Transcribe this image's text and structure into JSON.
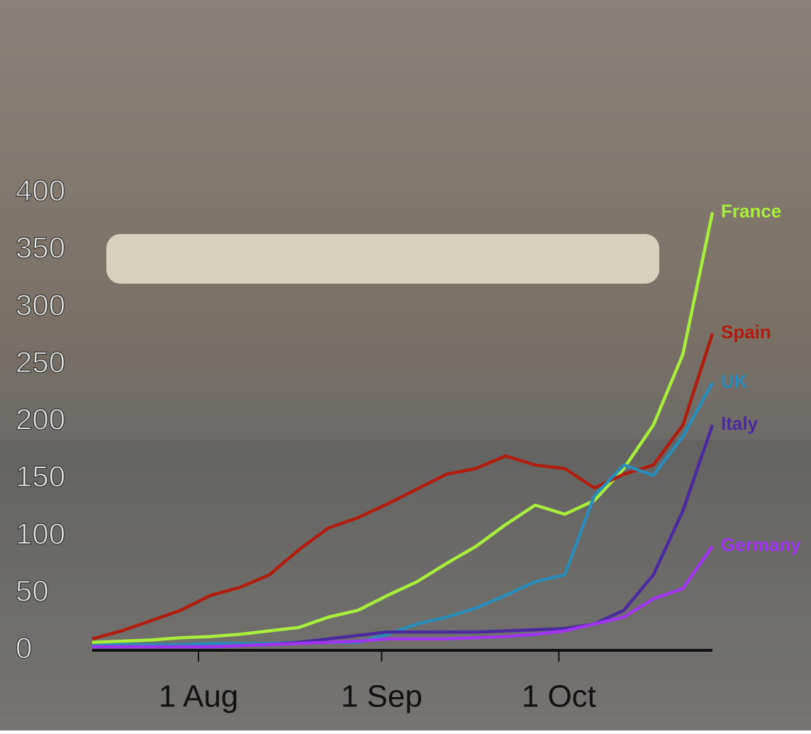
{
  "chart_data": {
    "type": "line",
    "x": [
      "14 Jul",
      "19 Jul",
      "24 Jul",
      "29 Jul",
      "3 Aug",
      "8 Aug",
      "13 Aug",
      "18 Aug",
      "23 Aug",
      "28 Aug",
      "2 Sep",
      "7 Sep",
      "12 Sep",
      "17 Sep",
      "22 Sep",
      "27 Sep",
      "2 Oct",
      "7 Oct",
      "12 Oct",
      "17 Oct",
      "22 Oct",
      "27 Oct"
    ],
    "series": [
      {
        "name": "France",
        "color": "#a8ee3c",
        "values": [
          7,
          8,
          9,
          11,
          12,
          14,
          17,
          20,
          29,
          35,
          48,
          60,
          76,
          91,
          110,
          127,
          119,
          131,
          159,
          197,
          259,
          383
        ]
      },
      {
        "name": "Spain",
        "color": "#b01c0e",
        "values": [
          10,
          17,
          26,
          35,
          48,
          55,
          66,
          88,
          107,
          116,
          128,
          141,
          154,
          159,
          170,
          162,
          159,
          142,
          154,
          162,
          197,
          277
        ]
      },
      {
        "name": "UK",
        "color": "#2a8cb8",
        "values": [
          4,
          5,
          5,
          5,
          6,
          6,
          6,
          7,
          7,
          7,
          14,
          23,
          29,
          37,
          48,
          60,
          66,
          135,
          162,
          153,
          187,
          234
        ]
      },
      {
        "name": "Italy",
        "color": "#4a2a9e",
        "values": [
          3,
          3,
          3,
          3,
          3,
          4,
          5,
          7,
          10,
          13,
          16,
          16,
          16,
          16,
          17,
          18,
          19,
          23,
          35,
          66,
          122,
          197
        ]
      },
      {
        "name": "Germany",
        "color": "#a035f0",
        "values": [
          3,
          3,
          3,
          3,
          3,
          4,
          5,
          6,
          7,
          8,
          10,
          10,
          10,
          11,
          12,
          14,
          17,
          23,
          29,
          45,
          54,
          91
        ]
      }
    ],
    "xlim": [
      "14 Jul",
      "27 Oct"
    ],
    "xticks": [
      "1 Aug",
      "1 Sep",
      "1 Oct"
    ],
    "ylim": [
      0,
      400
    ],
    "yticks": [
      0,
      50,
      100,
      150,
      200,
      250,
      300,
      350,
      400
    ]
  }
}
